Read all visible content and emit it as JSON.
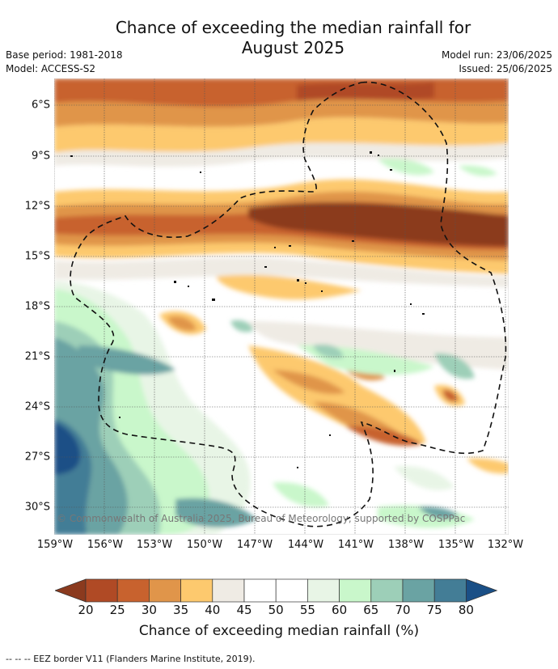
{
  "title_line1": "Chance of exceeding the median rainfall for",
  "title_line2": "August 2025",
  "base_period": "Base period: 1981-2018",
  "model": "Model: ACCESS-S2",
  "model_run": "Model run: 23/06/2025",
  "issued": "Issued: 25/06/2025",
  "lat_labels": [
    "6°S",
    "9°S",
    "12°S",
    "15°S",
    "18°S",
    "21°S",
    "24°S",
    "27°S",
    "30°S"
  ],
  "lon_labels": [
    "159°W",
    "156°W",
    "153°W",
    "150°W",
    "147°W",
    "144°W",
    "141°W",
    "138°W",
    "135°W",
    "132°W"
  ],
  "copyright": "© Commonwealth of Australia 2025, Bureau of Meteorology, supported by COSPPac",
  "colorbar": {
    "ticks": [
      "20",
      "25",
      "30",
      "35",
      "40",
      "45",
      "50",
      "55",
      "60",
      "65",
      "70",
      "75",
      "80"
    ],
    "colors": [
      "#8b3a1e",
      "#b04a25",
      "#c8622e",
      "#e0954a",
      "#fdc96e",
      "#efebe4",
      "#ffffff",
      "#ffffff",
      "#e8f5e6",
      "#c9f7cb",
      "#9dcfb8",
      "#6aa3a3",
      "#437d96",
      "#1a4f86"
    ],
    "label": "Chance of exceeding median rainfall (%)"
  },
  "footnote": "--  --  -- EEZ border V11 (Flanders Marine Institute, 2019)."
}
